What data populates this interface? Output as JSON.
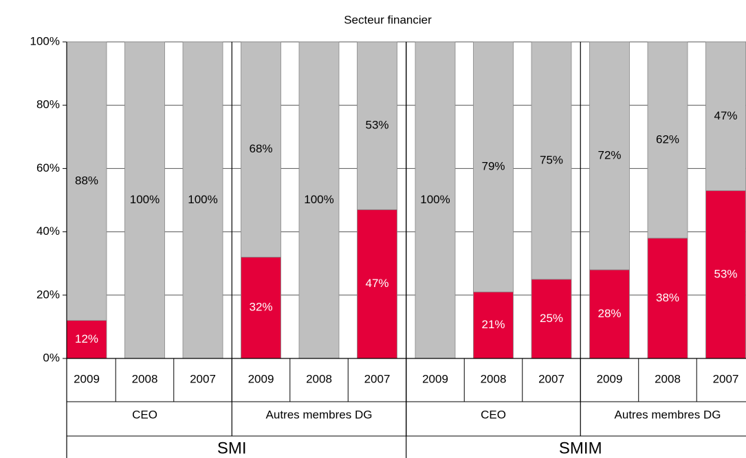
{
  "chart_data": {
    "type": "stacked_bar",
    "title": "Secteur financier",
    "categories": [
      "2009",
      "2008",
      "2007",
      "2009",
      "2008",
      "2007",
      "2009",
      "2008",
      "2007",
      "2009",
      "2008",
      "2007"
    ],
    "category_groups": [
      [
        "CEO",
        "Autres membres DG",
        "CEO",
        "Autres membres DG"
      ],
      [
        "SMI",
        "SMIM"
      ]
    ],
    "series": [
      {
        "color": "#e4003a",
        "values": [
          12,
          0,
          0,
          32,
          0,
          47,
          0,
          21,
          25,
          28,
          38,
          53
        ],
        "value_labels": [
          "12%",
          null,
          null,
          "32%",
          null,
          "47%",
          null,
          "21%",
          "25%",
          "28%",
          "38%",
          "53%"
        ]
      },
      {
        "color": "#bfbfbf",
        "values": [
          88,
          100,
          100,
          68,
          100,
          53,
          100,
          79,
          75,
          72,
          62,
          47
        ],
        "value_labels": [
          "88%",
          "100%",
          "100%",
          "68%",
          "100%",
          "53%",
          "100%",
          "79%",
          "75%",
          "72%",
          "62%",
          "47%"
        ]
      }
    ],
    "ylim": [
      0,
      100
    ],
    "yticks": [
      {
        "value": 0,
        "label": "0%"
      },
      {
        "value": 20,
        "label": "20%"
      },
      {
        "value": 40,
        "label": "40%"
      },
      {
        "value": 60,
        "label": "60%"
      },
      {
        "value": 80,
        "label": "80%"
      },
      {
        "value": 100,
        "label": "100%"
      }
    ],
    "grid": true
  }
}
